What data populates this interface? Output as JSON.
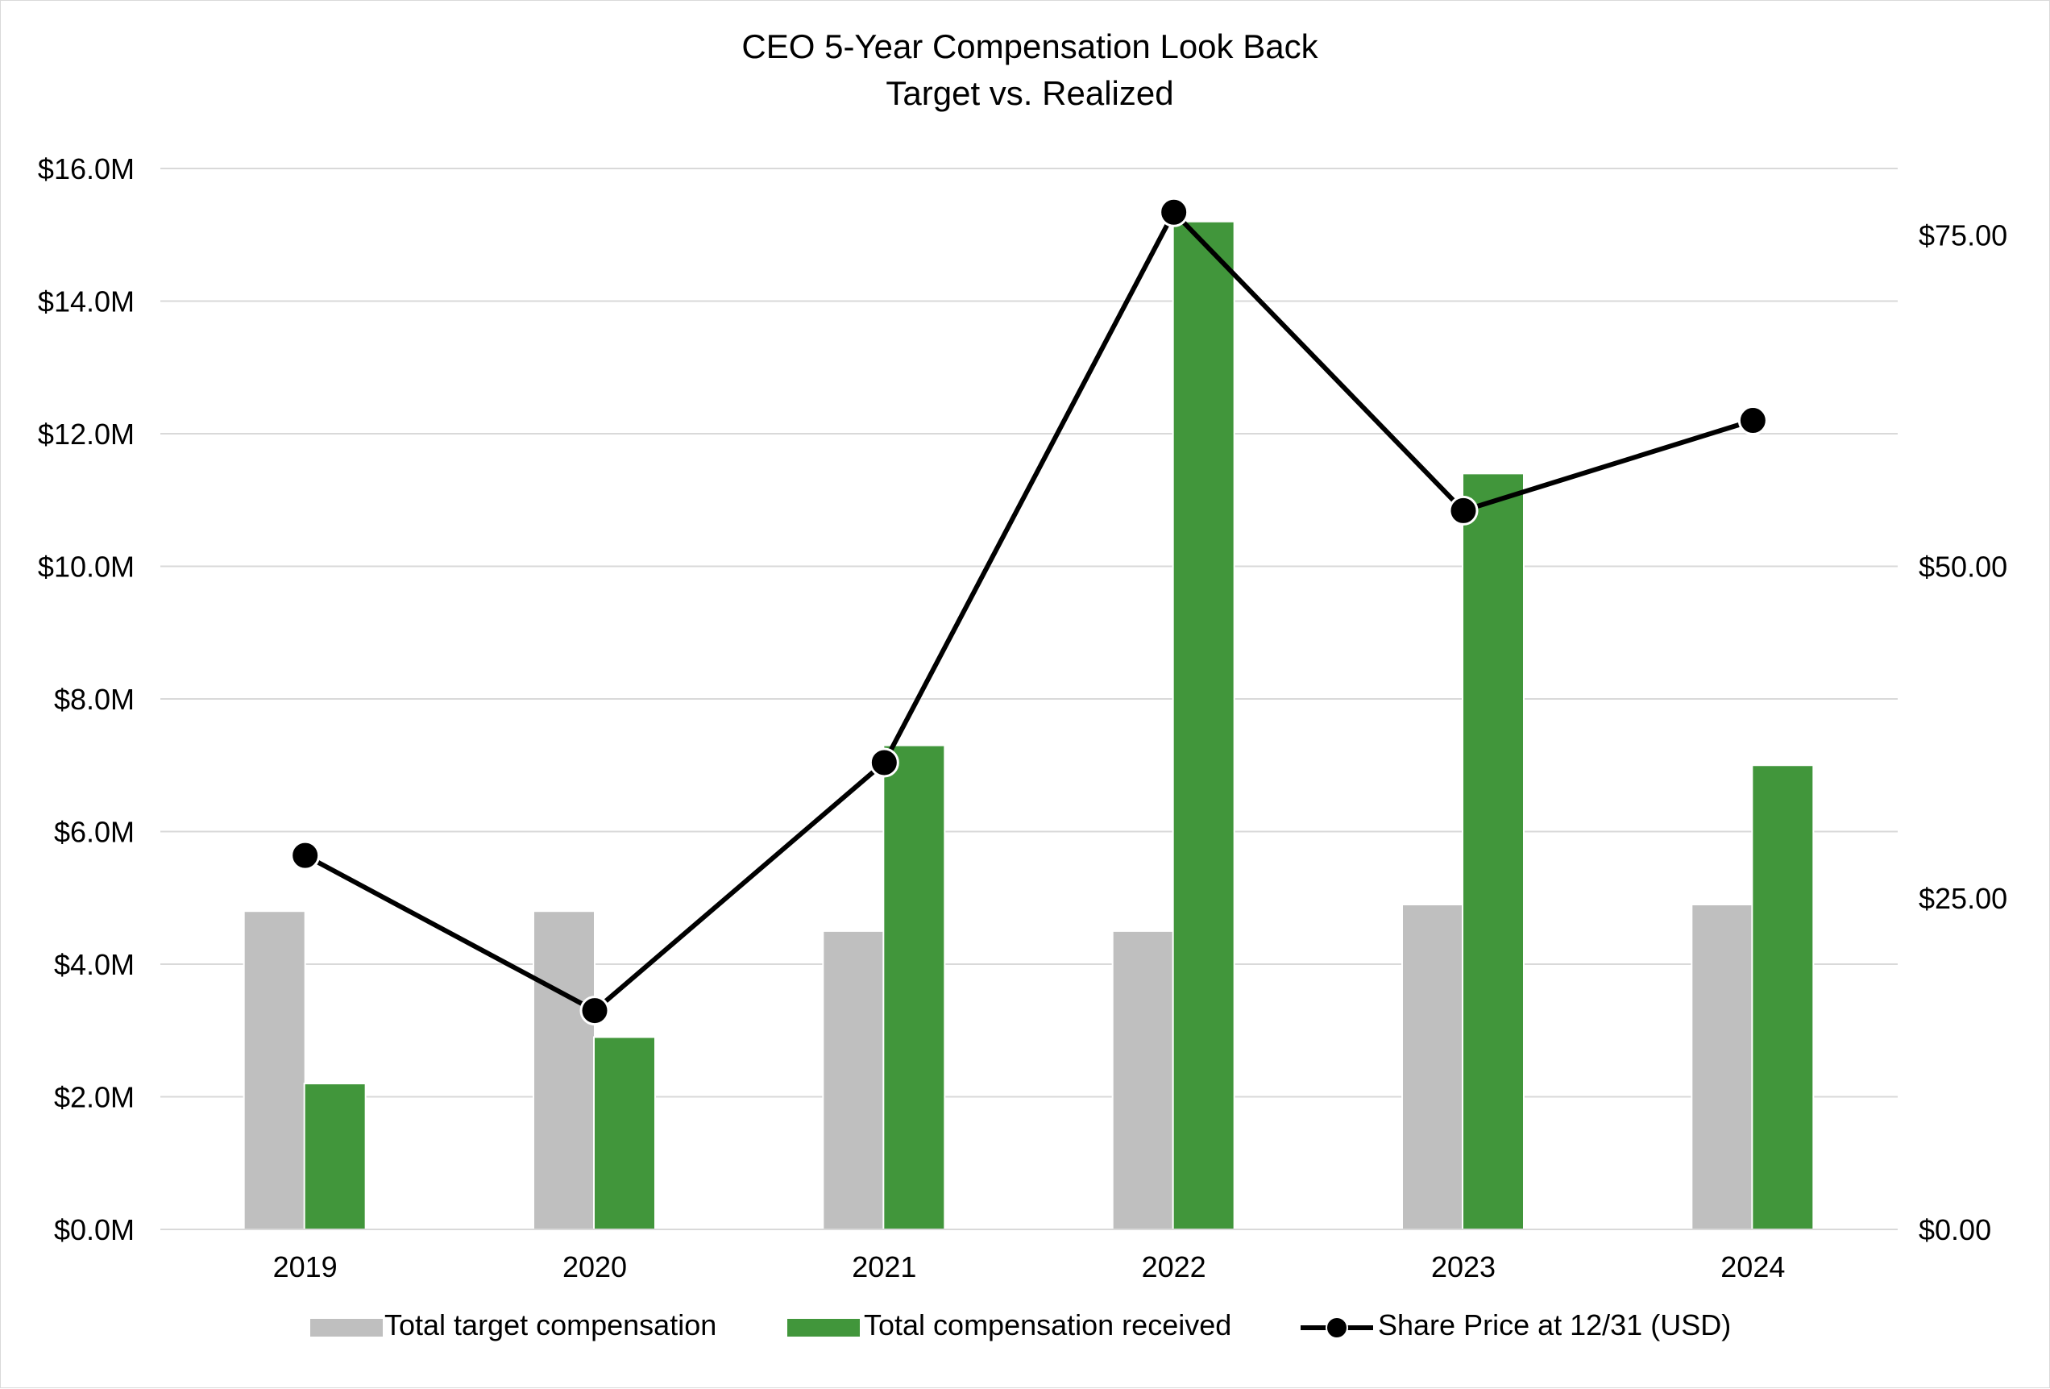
{
  "chart_data": {
    "type": "bar",
    "title": "CEO 5-Year Compensation Look Back",
    "subtitle": "Target vs. Realized",
    "categories": [
      "2019",
      "2020",
      "2021",
      "2022",
      "2023",
      "2024"
    ],
    "y_left": {
      "ylim": [
        0,
        16
      ],
      "ticks": [
        0,
        2,
        4,
        6,
        8,
        10,
        12,
        14,
        16
      ],
      "tick_labels": [
        "$0.0M",
        "$2.0M",
        "$4.0M",
        "$6.0M",
        "$8.0M",
        "$10.0M",
        "$12.0M",
        "$14.0M",
        "$16.0M"
      ]
    },
    "y_right": {
      "ylim": [
        0,
        80
      ],
      "ticks": [
        0,
        25,
        50,
        75
      ],
      "tick_labels": [
        "$0.00",
        "$25.00",
        "$50.00",
        "$75.00"
      ]
    },
    "grid": true,
    "legend_position": "bottom",
    "series": [
      {
        "name": "Total target compensation",
        "type": "bar",
        "axis": "left",
        "color": "#bfbfbf",
        "values": [
          4.8,
          4.8,
          4.5,
          4.5,
          4.9,
          4.9
        ]
      },
      {
        "name": "Total compensation received",
        "type": "bar",
        "axis": "left",
        "color": "#41963b",
        "values": [
          2.2,
          2.9,
          7.3,
          15.2,
          11.4,
          7.0
        ]
      },
      {
        "name": "Share Price at 12/31 (USD)",
        "type": "line",
        "axis": "right",
        "color": "#000000",
        "values": [
          28.2,
          16.5,
          35.2,
          76.7,
          54.2,
          61.0
        ]
      }
    ]
  }
}
